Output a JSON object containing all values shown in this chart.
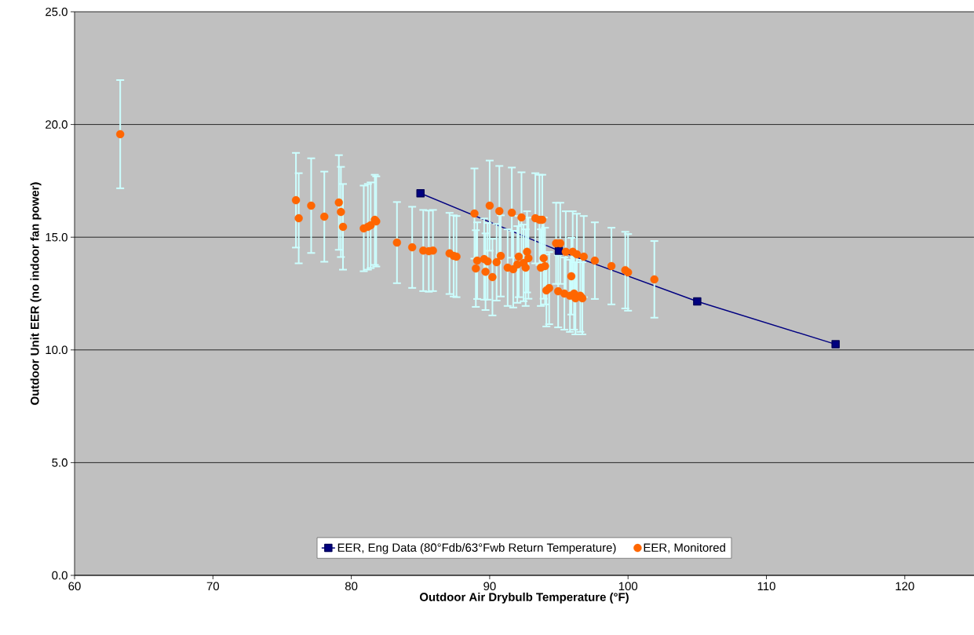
{
  "chart_data": {
    "type": "scatter",
    "xlabel": "Outdoor Air Drybulb Temperature (°F)",
    "ylabel": "Outdoor Unit EER (no indoor fan power)",
    "xlim": [
      60,
      125
    ],
    "xticks": [
      60,
      70,
      80,
      90,
      100,
      110,
      120
    ],
    "ylim": [
      0,
      25
    ],
    "yticks": [
      {
        "value": 0,
        "label": "0.0"
      },
      {
        "value": 5,
        "label": "5.0"
      },
      {
        "value": 10,
        "label": "10.0"
      },
      {
        "value": 15,
        "label": "15.0"
      },
      {
        "value": 20,
        "label": "20.0"
      },
      {
        "value": 25,
        "label": "25.0"
      }
    ],
    "grid": "y",
    "legend": "bottom",
    "series": [
      {
        "name": "EER, Eng Data (80°Fdb/63°Fwb Return Temperature)",
        "type": "line",
        "color": "#000080",
        "marker": "square",
        "x": [
          85,
          95,
          105,
          115
        ],
        "values": [
          16.95,
          14.4,
          12.15,
          10.25
        ]
      },
      {
        "name": "EER, Monitored",
        "color": "#ff6600",
        "marker": "circle",
        "x": [
          63.3,
          76.0,
          76.2,
          77.1,
          78.05,
          79.1,
          79.25,
          79.4,
          80.9,
          81.2,
          81.4,
          81.7,
          81.8,
          83.3,
          84.4,
          85.2,
          85.6,
          85.9,
          87.1,
          87.4,
          87.6,
          88.9,
          90.0,
          90.7,
          91.6,
          92.3,
          93.3,
          93.6,
          93.8,
          94.8,
          95.1,
          95.5,
          96.0,
          96.3,
          96.8,
          97.6,
          98.8,
          99.8,
          100.0,
          101.9,
          89.1,
          89.0,
          89.6,
          89.85,
          89.7,
          90.2,
          90.5,
          90.8,
          91.3,
          91.7,
          92.1,
          92.0,
          92.45,
          92.7,
          92.8,
          92.6,
          93.9,
          93.7,
          94.0,
          95.9,
          94.1,
          94.3,
          94.95,
          95.4,
          95.8,
          96.1,
          96.2,
          96.55,
          96.7
        ],
        "values": [
          19.57,
          16.64,
          15.84,
          16.4,
          15.91,
          16.54,
          16.12,
          15.46,
          15.39,
          15.46,
          15.53,
          15.77,
          15.7,
          14.76,
          14.55,
          14.41,
          14.38,
          14.41,
          14.28,
          14.17,
          14.14,
          16.05,
          16.4,
          16.16,
          16.09,
          15.88,
          15.84,
          15.77,
          15.77,
          14.73,
          14.73,
          14.35,
          14.35,
          14.24,
          14.14,
          13.96,
          13.72,
          13.54,
          13.44,
          13.13,
          13.96,
          13.61,
          14.03,
          13.93,
          13.47,
          13.23,
          13.89,
          14.17,
          13.65,
          13.58,
          14.14,
          13.79,
          13.86,
          14.35,
          14.07,
          13.65,
          14.07,
          13.65,
          13.72,
          13.27,
          12.64,
          12.74,
          12.6,
          12.5,
          12.4,
          12.5,
          12.29,
          12.4,
          12.29
        ],
        "errors": [
          2.4,
          2.1,
          2.0,
          2.1,
          2.0,
          2.1,
          2.0,
          1.9,
          1.9,
          1.9,
          1.9,
          2.0,
          2.0,
          1.8,
          1.8,
          1.8,
          1.8,
          1.8,
          1.8,
          1.8,
          1.8,
          2.0,
          2.0,
          2.0,
          2.0,
          2.0,
          2.0,
          2.0,
          2.0,
          1.8,
          1.8,
          1.8,
          1.8,
          1.8,
          1.8,
          1.7,
          1.7,
          1.7,
          1.7,
          1.7,
          1.7,
          1.7,
          1.8,
          1.7,
          1.7,
          1.7,
          1.7,
          1.8,
          1.7,
          1.7,
          1.8,
          1.7,
          1.7,
          1.8,
          1.8,
          1.7,
          1.8,
          1.7,
          1.7,
          1.7,
          1.6,
          1.6,
          1.6,
          1.6,
          1.6,
          1.6,
          1.6,
          1.6,
          1.6
        ]
      }
    ]
  }
}
